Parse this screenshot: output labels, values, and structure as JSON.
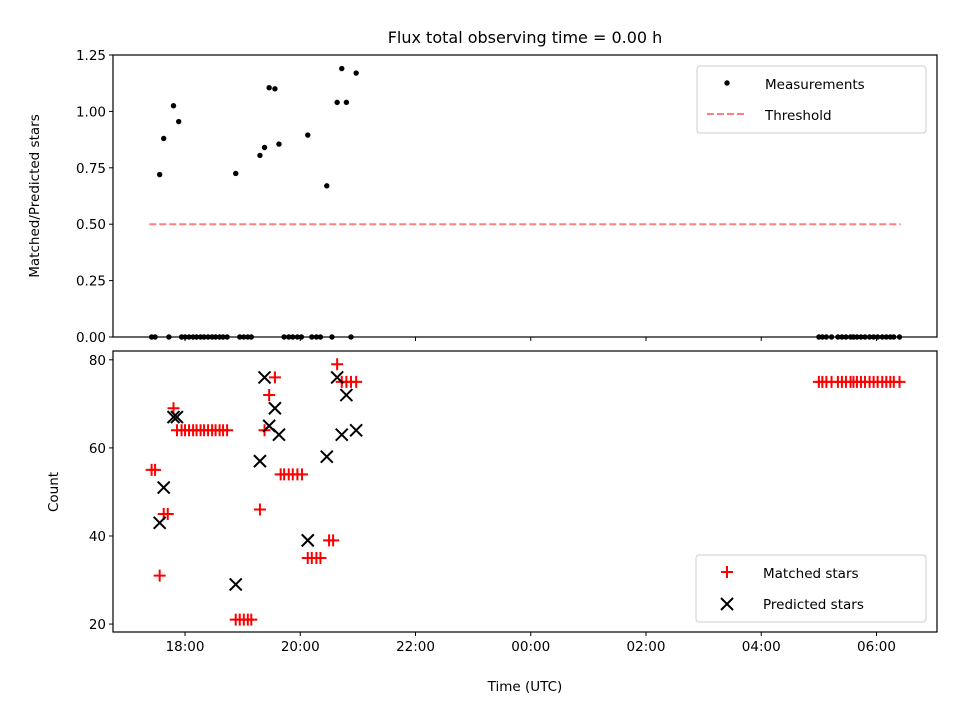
{
  "chart_data": [
    {
      "type": "scatter",
      "title": "Flux total observing time = 0.00 h",
      "xlabel": "",
      "ylabel": "Matched/Predicted stars",
      "xlim_hours": [
        16.75,
        31.05
      ],
      "ylim": [
        0,
        1.25
      ],
      "yticks": [
        0,
        0.25,
        0.5,
        0.75,
        1.0,
        1.25
      ],
      "ytick_labels": [
        "0.00",
        "0.25",
        "0.50",
        "0.75",
        "1.00",
        "1.25"
      ],
      "legend": {
        "placement": "top-right",
        "entries": [
          "Measurements",
          "Threshold"
        ]
      },
      "threshold": {
        "value": 0.5,
        "x_range_hours": [
          17.38,
          30.42
        ],
        "color": "#ff7f7f"
      },
      "measurements": {
        "color": "#000000",
        "x_hours": [
          17.42,
          17.48,
          17.56,
          17.63,
          17.72,
          17.8,
          17.89,
          17.94,
          18.0,
          18.07,
          18.14,
          18.2,
          18.27,
          18.33,
          18.4,
          18.47,
          18.53,
          18.6,
          18.66,
          18.73,
          18.88,
          18.95,
          19.02,
          19.09,
          19.15,
          19.3,
          19.38,
          19.46,
          19.56,
          19.63,
          19.72,
          19.8,
          19.87,
          19.95,
          20.02,
          20.13,
          20.2,
          20.28,
          20.35,
          20.46,
          20.55,
          20.64,
          20.72,
          20.8,
          20.88,
          20.97,
          29.0,
          29.06,
          29.13,
          29.22,
          29.33,
          29.4,
          29.47,
          29.55,
          29.6,
          29.66,
          29.73,
          29.8,
          29.88,
          29.95,
          30.02,
          30.1,
          30.17,
          30.24,
          30.3,
          30.4
        ],
        "y": [
          0,
          0,
          0.72,
          0.88,
          0,
          1.025,
          0.955,
          0,
          0,
          0,
          0,
          0,
          0,
          0,
          0,
          0,
          0,
          0,
          0,
          0,
          0.725,
          0,
          0,
          0,
          0,
          0.805,
          0.84,
          1.105,
          1.1,
          0.855,
          0,
          0,
          0,
          0,
          0,
          0.895,
          0,
          0,
          0,
          0.67,
          0,
          1.04,
          1.19,
          1.04,
          0,
          1.17,
          0,
          0,
          0,
          0,
          0,
          0,
          0,
          0,
          0,
          0,
          0,
          0,
          0,
          0,
          0,
          0,
          0,
          0,
          0,
          0
        ]
      }
    },
    {
      "type": "scatter",
      "title": "",
      "xlabel": "Time (UTC)",
      "ylabel": "Count",
      "xlim_hours": [
        16.75,
        31.05
      ],
      "ylim": [
        18.2,
        82.0
      ],
      "yticks": [
        20,
        40,
        60,
        80
      ],
      "ytick_labels": [
        "20",
        "40",
        "60",
        "80"
      ],
      "xticks_hours": [
        18,
        20,
        22,
        24,
        26,
        28,
        30
      ],
      "xtick_labels": [
        "18:00",
        "20:00",
        "22:00",
        "00:00",
        "02:00",
        "04:00",
        "06:00"
      ],
      "legend": {
        "placement": "bottom-right",
        "entries": [
          "Matched stars",
          "Predicted stars"
        ]
      },
      "series": [
        {
          "name": "Matched stars",
          "marker": "+",
          "color": "#ff0000",
          "x_hours": [
            17.42,
            17.48,
            17.56,
            17.63,
            17.7,
            17.8,
            17.86,
            17.94,
            18.0,
            18.07,
            18.14,
            18.2,
            18.27,
            18.33,
            18.4,
            18.47,
            18.53,
            18.6,
            18.66,
            18.73,
            18.88,
            18.95,
            19.02,
            19.09,
            19.15,
            19.3,
            19.38,
            19.46,
            19.56,
            19.66,
            19.72,
            19.8,
            19.87,
            19.95,
            20.03,
            20.13,
            20.2,
            20.28,
            20.35,
            20.5,
            20.57,
            20.64,
            20.72,
            20.8,
            20.88,
            20.97,
            29.0,
            29.06,
            29.13,
            29.22,
            29.33,
            29.4,
            29.47,
            29.55,
            29.6,
            29.66,
            29.73,
            29.8,
            29.88,
            29.95,
            30.02,
            30.1,
            30.17,
            30.24,
            30.3,
            30.4
          ],
          "y": [
            55,
            55,
            31,
            45,
            45,
            69,
            64,
            64,
            64,
            64,
            64,
            64,
            64,
            64,
            64,
            64,
            64,
            64,
            64,
            64,
            21,
            21,
            21,
            21,
            21,
            46,
            64,
            72,
            76,
            54,
            54,
            54,
            54,
            54,
            54,
            35,
            35,
            35,
            35,
            39,
            39,
            79,
            75,
            75,
            75,
            75,
            75,
            75,
            75,
            75,
            75,
            75,
            75,
            75,
            75,
            75,
            75,
            75,
            75,
            75,
            75,
            75,
            75,
            75,
            75,
            75
          ]
        },
        {
          "name": "Predicted stars",
          "marker": "x",
          "color": "#000000",
          "x_hours": [
            17.56,
            17.63,
            17.8,
            17.86,
            18.88,
            19.3,
            19.38,
            19.46,
            19.56,
            19.63,
            20.13,
            20.46,
            20.64,
            20.72,
            20.8,
            20.97
          ],
          "y": [
            43,
            51,
            67,
            67,
            29,
            57,
            76,
            65,
            69,
            63,
            39,
            58,
            76,
            63,
            72,
            64
          ]
        }
      ]
    }
  ]
}
